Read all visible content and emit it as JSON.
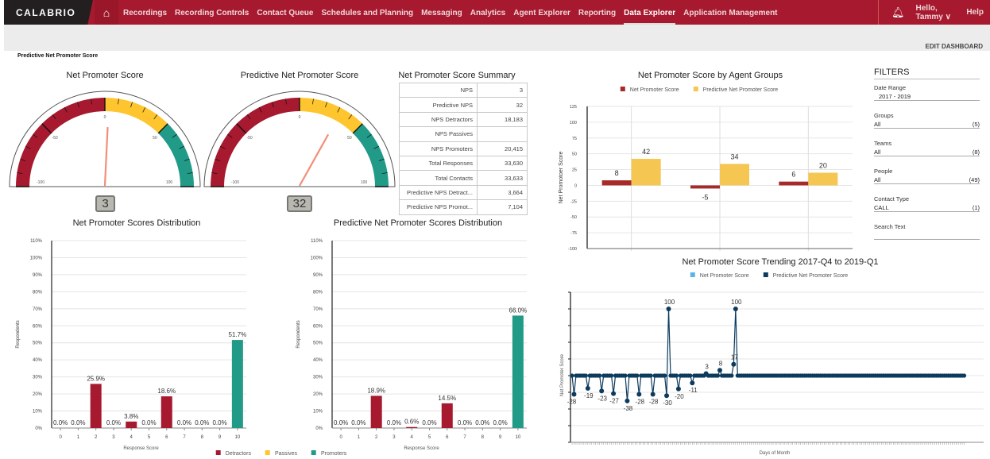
{
  "nav": {
    "logo": "CALABRIO",
    "items": [
      "Recordings",
      "Recording Controls",
      "Contact Queue",
      "Schedules and Planning",
      "Messaging",
      "Analytics",
      "Agent Explorer",
      "Reporting",
      "Data Explorer",
      "Application Management"
    ],
    "active": "Data Explorer",
    "greeting": "Hello, Tammy ∨",
    "help": "Help",
    "icons": [
      "home-icon",
      "bell-icon"
    ]
  },
  "page": {
    "edit_dashboard": "EDIT DASHBOARD",
    "title": "Predictive Net Promoter Score"
  },
  "colors": {
    "brand": "#a6192e",
    "detractors": "#a6192e",
    "passives": "#fec52e",
    "promoters": "#229a88",
    "nps_bar": "#a62a2a",
    "pnps_bar": "#f5c651",
    "trend_nps": "#5bb4e5",
    "trend_pnps": "#0d3b5e"
  },
  "gauges": [
    {
      "title": "Net Promoter Score",
      "value": 3,
      "display": "3",
      "min": -100,
      "max": 100,
      "labels": [
        "-100",
        "-50",
        "0",
        "50",
        "100"
      ]
    },
    {
      "title": "Predictive Net Promoter Score",
      "value": 32,
      "display": "32",
      "min": -100,
      "max": 100,
      "labels": [
        "-100",
        "-50",
        "0",
        "50",
        "100"
      ]
    }
  ],
  "summary": {
    "title": "Net Promoter Score Summary",
    "rows": [
      [
        "NPS",
        "3"
      ],
      [
        "Predictive NPS",
        "32"
      ],
      [
        "NPS Detractors",
        "18,183"
      ],
      [
        "NPS Passives",
        ""
      ],
      [
        "NPS Promoters",
        "20,415"
      ],
      [
        "Total Responses",
        "33,630"
      ],
      [
        "Total Contacts",
        "33,633"
      ],
      [
        "Predictive NPS Detract...",
        "3,664"
      ],
      [
        "Predictive NPS Promot...",
        "7,104"
      ]
    ]
  },
  "filters": {
    "title": "FILTERS",
    "items": [
      {
        "label": "Date Range",
        "value": "2017 - 2019",
        "count": ""
      },
      {
        "label": "Groups",
        "value": "All",
        "count": "(5)"
      },
      {
        "label": "Teams",
        "value": "All",
        "count": "(8)"
      },
      {
        "label": "People",
        "value": "All",
        "count": "(49)"
      },
      {
        "label": "Contact Type",
        "value": "CALL",
        "count": "(1)"
      },
      {
        "label": "Search Text",
        "value": "",
        "count": ""
      }
    ]
  },
  "chart_data": [
    {
      "type": "bar",
      "title": "Net Promoter Scores Distribution",
      "xlabel": "Response Score",
      "ylabel": "Respondents",
      "ylim": [
        0,
        110
      ],
      "yticks": [
        "0%",
        "10%",
        "20%",
        "30%",
        "40%",
        "50%",
        "60%",
        "70%",
        "80%",
        "90%",
        "100%",
        "110%"
      ],
      "categories": [
        "0",
        "1",
        "2",
        "3",
        "4",
        "5",
        "6",
        "7",
        "8",
        "9",
        "10"
      ],
      "values": [
        0,
        0,
        25.9,
        0,
        3.8,
        0,
        18.6,
        0,
        0,
        0,
        51.7
      ],
      "labels": [
        "0.0%",
        "0.0%",
        "25.9%",
        "0.0%",
        "3.8%",
        "0.0%",
        "18.6%",
        "0.0%",
        "0.0%",
        "0.0%",
        "51.7%"
      ],
      "groups": [
        "Detractors",
        "Detractors",
        "Detractors",
        "Detractors",
        "Detractors",
        "Detractors",
        "Detractors",
        "Passives",
        "Passives",
        "Promoters",
        "Promoters"
      ]
    },
    {
      "type": "bar",
      "title": "Predictive Net Promoter Scores Distribution",
      "xlabel": "Response Score",
      "ylabel": "Respondents",
      "ylim": [
        0,
        110
      ],
      "yticks": [
        "0%",
        "10%",
        "20%",
        "30%",
        "40%",
        "50%",
        "60%",
        "70%",
        "80%",
        "90%",
        "100%",
        "110%"
      ],
      "categories": [
        "0",
        "1",
        "2",
        "3",
        "4",
        "5",
        "6",
        "7",
        "8",
        "9",
        "10"
      ],
      "values": [
        0,
        0,
        18.9,
        0,
        0.6,
        0,
        14.5,
        0,
        0,
        0,
        66.0
      ],
      "labels": [
        "0.0%",
        "0.0%",
        "18.9%",
        "0.0%",
        "0.6%",
        "0.0%",
        "14.5%",
        "0.0%",
        "0.0%",
        "0.0%",
        "66.0%"
      ],
      "groups": [
        "Detractors",
        "Detractors",
        "Detractors",
        "Detractors",
        "Detractors",
        "Detractors",
        "Detractors",
        "Passives",
        "Passives",
        "Promoters",
        "Promoters"
      ],
      "legend": [
        "Detractors",
        "Passives",
        "Promoters"
      ]
    },
    {
      "type": "bar",
      "title": "Net Promoter Score by Agent Groups",
      "ylabel": "Net Promotoer Score",
      "ylim": [
        -100,
        125
      ],
      "yticks": [
        "-100",
        "-75",
        "-50",
        "-25",
        "0",
        "25",
        "50",
        "75",
        "100",
        "125"
      ],
      "series": [
        {
          "name": "Net Promoter Score",
          "values": [
            8,
            -5,
            6
          ]
        },
        {
          "name": "Predictive Net Promoter Score",
          "values": [
            42,
            34,
            20
          ]
        }
      ],
      "grid": true,
      "legend": "top"
    },
    {
      "type": "line",
      "title": "Net Promoter Score Trending 2017-Q4 to 2019-Q1",
      "xlabel": "Days of Month",
      "ylabel": "Net Promoter Score",
      "ylim": [
        -100,
        125
      ],
      "grid": true,
      "legend": "top",
      "series": [
        {
          "name": "Net Promoter Score"
        },
        {
          "name": "Predictive Net Promoter Score",
          "values": [
            0,
            -28,
            0,
            0,
            0,
            0,
            0,
            0,
            -19,
            0,
            0,
            0,
            0,
            0,
            0,
            -23,
            0,
            0,
            0,
            0,
            0,
            -27,
            0,
            0,
            0,
            0,
            0,
            0,
            -38,
            0,
            0,
            0,
            0,
            0,
            -28,
            0,
            0,
            0,
            0,
            0,
            0,
            -28,
            0,
            0,
            0,
            0,
            0,
            0,
            -30,
            100,
            0,
            0,
            0,
            0,
            -20,
            0,
            0,
            0,
            0,
            0,
            0,
            -11,
            0,
            0,
            0,
            0,
            0,
            0,
            3,
            0,
            0,
            0,
            0,
            0,
            0,
            8,
            0,
            0,
            0,
            0,
            0,
            0,
            17,
            100,
            0,
            0,
            0,
            0,
            0,
            0,
            0,
            0,
            0,
            0,
            0,
            0,
            0,
            0,
            0,
            0,
            0,
            0,
            0,
            0,
            0,
            0,
            0,
            0,
            0,
            0,
            0,
            0,
            0,
            0,
            0,
            0,
            0,
            0,
            0,
            0,
            0,
            0,
            0,
            0,
            0,
            0,
            0,
            0,
            0,
            0,
            0,
            0,
            0,
            0,
            0,
            0,
            0,
            0,
            0,
            0,
            0,
            0,
            0,
            0,
            0,
            0,
            0,
            0,
            0,
            0,
            0,
            0,
            0,
            0,
            0,
            0,
            0,
            0,
            0,
            0,
            0,
            0,
            0,
            0,
            0,
            0,
            0,
            0,
            0,
            0,
            0,
            0,
            0,
            0,
            0,
            0,
            0,
            0,
            0,
            0,
            0,
            0,
            0,
            0,
            0,
            0,
            0,
            0,
            0,
            0,
            0,
            0,
            0,
            0,
            0,
            0,
            0,
            0,
            0,
            0
          ],
          "labels_shown": [
            -28,
            -19,
            -23,
            -27,
            -38,
            -28,
            -28,
            -30,
            100,
            -20,
            -11,
            3,
            8,
            17,
            100
          ]
        }
      ]
    }
  ]
}
